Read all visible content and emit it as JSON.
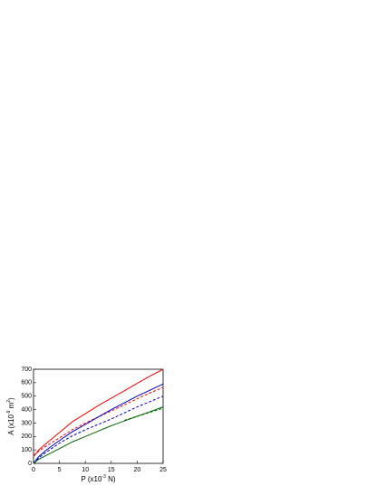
{
  "chart_data": {
    "type": "line",
    "x_label": [
      "P (x10",
      "-3",
      " N)"
    ],
    "y_label": [
      "A (x10",
      "-9",
      " m",
      "2",
      ")"
    ],
    "x": [
      0,
      1,
      2.5,
      5,
      7.5,
      10,
      12.5,
      15,
      17.5,
      20,
      22.5,
      25
    ],
    "series": [
      {
        "color": "#ff0000",
        "dash": false,
        "values": [
          50,
          100,
          150,
          230,
          310,
          370,
          430,
          485,
          540,
          595,
          650,
          700
        ]
      },
      {
        "color": "#ff0000",
        "dash": true,
        "values": [
          60,
          90,
          130,
          190,
          250,
          300,
          345,
          390,
          435,
          480,
          525,
          565
        ]
      },
      {
        "color": "#0000cc",
        "dash": false,
        "values": [
          0,
          50,
          100,
          170,
          235,
          290,
          345,
          400,
          450,
          500,
          545,
          590
        ]
      },
      {
        "color": "#0000cc",
        "dash": true,
        "values": [
          0,
          40,
          85,
          150,
          205,
          250,
          290,
          330,
          375,
          420,
          460,
          500
        ]
      },
      {
        "color": "#006600",
        "dash": false,
        "values": [
          0,
          30,
          60,
          110,
          160,
          200,
          240,
          280,
          315,
          350,
          385,
          420
        ]
      },
      {
        "color": "#006600",
        "dash": true,
        "values": [
          null,
          null,
          null,
          null,
          null,
          null,
          null,
          null,
          320,
          350,
          380,
          410
        ]
      }
    ],
    "xlim": [
      0,
      25
    ],
    "ylim": [
      0,
      700
    ],
    "xticks": [
      0,
      5,
      10,
      15,
      20,
      25
    ],
    "yticks": [
      0,
      100,
      200,
      300,
      400,
      500,
      600,
      700
    ]
  }
}
